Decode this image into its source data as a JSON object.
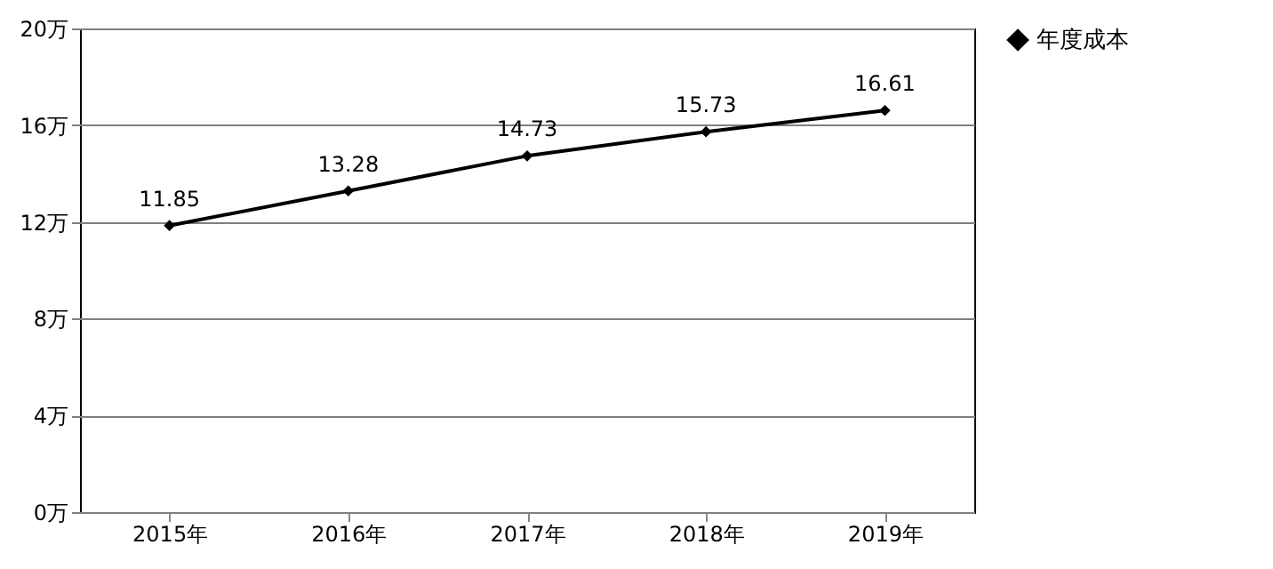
{
  "chart_data": {
    "type": "line",
    "categories": [
      "2015年",
      "2016年",
      "2017年",
      "2018年",
      "2019年"
    ],
    "series": [
      {
        "name": "年度成本",
        "color": "#000000",
        "values": [
          11.85,
          13.28,
          14.73,
          15.73,
          16.61
        ]
      }
    ],
    "ylim": [
      0,
      20
    ],
    "yticks": [
      {
        "value": 0,
        "label": "0万"
      },
      {
        "value": 4,
        "label": "4万"
      },
      {
        "value": 8,
        "label": "8万"
      },
      {
        "value": 12,
        "label": "12万"
      },
      {
        "value": 16,
        "label": "16万"
      },
      {
        "value": 20,
        "label": "20万"
      }
    ],
    "grid": "y",
    "legend": "right",
    "marker": "diamond",
    "line_style": "solid",
    "data_labels": true
  }
}
